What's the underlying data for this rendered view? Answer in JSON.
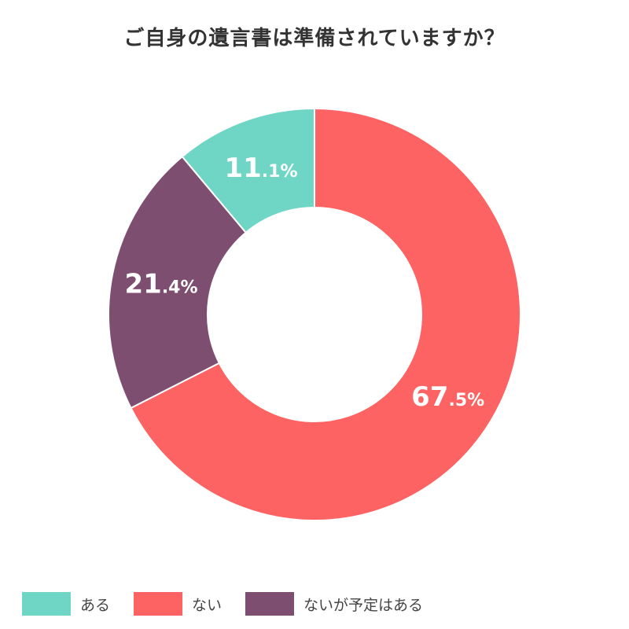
{
  "title": "ご自身の遺言書は準備されていますか？",
  "chart_data": {
    "type": "pie",
    "title": "ご自身の遺言書は準備されていますか？",
    "legend_position": "bottom-left",
    "unit": "%",
    "slices": [
      {
        "label": "ある",
        "value": 11.1,
        "color": "#6fd6c6"
      },
      {
        "label": "ない",
        "value": 67.5,
        "color": "#fd6363"
      },
      {
        "label": "ないが予定はある",
        "value": 21.4,
        "color": "#7d4e70"
      }
    ]
  }
}
